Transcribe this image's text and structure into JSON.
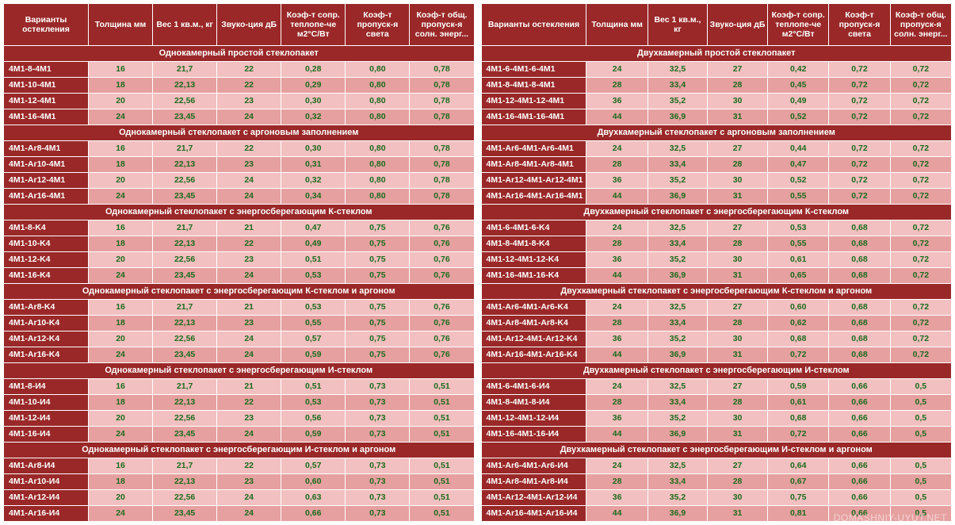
{
  "type": "table",
  "background_color": "#ffffff",
  "header_bg": "#9a2828",
  "header_fg": "#ffffff",
  "section_bg": "#9a2828",
  "section_fg": "#ffffff",
  "row_alt_colors": [
    "#f2c0c0",
    "#e6a0a0"
  ],
  "value_color": "#1c6b1c",
  "variant_cell_bg": "#9a2828",
  "font_family": "Arial",
  "header_fontsize": 10.5,
  "cell_fontsize": 10.5,
  "watermark": "DOMASHNIY-UYUT.NET",
  "columns": [
    "Варианты остекления",
    "Толщина мм",
    "Вес 1 кв.м., кг",
    "Звуко-ция дБ",
    "Коэф-т сопр. теплопе-че м2°С/Вт",
    "Коэф-т пропуск-я света",
    "Коэф-т общ. пропуск-я солн. энерг..."
  ],
  "left": {
    "sections": [
      {
        "title": "Однокамерный простой стеклопакет",
        "rows": [
          [
            "4M1-8-4M1",
            "16",
            "21,7",
            "22",
            "0,28",
            "0,80",
            "0,78"
          ],
          [
            "4M1-10-4M1",
            "18",
            "22,13",
            "22",
            "0,29",
            "0,80",
            "0,78"
          ],
          [
            "4M1-12-4M1",
            "20",
            "22,56",
            "23",
            "0,30",
            "0,80",
            "0,78"
          ],
          [
            "4M1-16-4M1",
            "24",
            "23,45",
            "24",
            "0,32",
            "0,80",
            "0,78"
          ]
        ]
      },
      {
        "title": "Однокамерный стеклопакет с аргоновым заполнением",
        "rows": [
          [
            "4M1-Ar8-4M1",
            "16",
            "21,7",
            "22",
            "0,30",
            "0,80",
            "0,78"
          ],
          [
            "4M1-Ar10-4M1",
            "18",
            "22,13",
            "23",
            "0,31",
            "0,80",
            "0,78"
          ],
          [
            "4M1-Ar12-4M1",
            "20",
            "22,56",
            "24",
            "0,32",
            "0,80",
            "0,78"
          ],
          [
            "4M1-Ar16-4M1",
            "24",
            "23,45",
            "24",
            "0,34",
            "0,80",
            "0,78"
          ]
        ]
      },
      {
        "title": "Однокамерный стеклопакет с энергосберегающим К-стеклом",
        "rows": [
          [
            "4M1-8-K4",
            "16",
            "21,7",
            "21",
            "0,47",
            "0,75",
            "0,76"
          ],
          [
            "4M1-10-K4",
            "18",
            "22,13",
            "22",
            "0,49",
            "0,75",
            "0,76"
          ],
          [
            "4M1-12-K4",
            "20",
            "22,56",
            "23",
            "0,51",
            "0,75",
            "0,76"
          ],
          [
            "4M1-16-K4",
            "24",
            "23,45",
            "24",
            "0,53",
            "0,75",
            "0,76"
          ]
        ]
      },
      {
        "title": "Однокамерный стеклопакет с энергосберегающим К-стеклом и аргоном",
        "rows": [
          [
            "4M1-Ar8-K4",
            "16",
            "21,7",
            "21",
            "0,53",
            "0,75",
            "0,76"
          ],
          [
            "4M1-Ar10-K4",
            "18",
            "22,13",
            "23",
            "0,55",
            "0,75",
            "0,76"
          ],
          [
            "4M1-Ar12-K4",
            "20",
            "22,56",
            "24",
            "0,57",
            "0,75",
            "0,76"
          ],
          [
            "4M1-Ar16-K4",
            "24",
            "23,45",
            "24",
            "0,59",
            "0,75",
            "0,76"
          ]
        ]
      },
      {
        "title": "Однокамерный стеклопакет с энергосберегающим И-стеклом",
        "rows": [
          [
            "4M1-8-И4",
            "16",
            "21,7",
            "21",
            "0,51",
            "0,73",
            "0,51"
          ],
          [
            "4M1-10-И4",
            "18",
            "22,13",
            "22",
            "0,53",
            "0,73",
            "0,51"
          ],
          [
            "4M1-12-И4",
            "20",
            "22,56",
            "23",
            "0,56",
            "0,73",
            "0,51"
          ],
          [
            "4M1-16-И4",
            "24",
            "23,45",
            "24",
            "0,59",
            "0,73",
            "0,51"
          ]
        ]
      },
      {
        "title": "Однокамерный стеклопакет с энергосберегающим И-стеклом и аргоном",
        "rows": [
          [
            "4M1-Ar8-И4",
            "16",
            "21,7",
            "22",
            "0,57",
            "0,73",
            "0,51"
          ],
          [
            "4M1-Ar10-И4",
            "18",
            "22,13",
            "23",
            "0,60",
            "0,73",
            "0,51"
          ],
          [
            "4M1-Ar12-И4",
            "20",
            "22,56",
            "24",
            "0,63",
            "0,73",
            "0,51"
          ],
          [
            "4M1-Ar16-И4",
            "24",
            "23,45",
            "24",
            "0,66",
            "0,73",
            "0,51"
          ]
        ]
      }
    ]
  },
  "right": {
    "sections": [
      {
        "title": "Двухкамерный простой стеклопакет",
        "rows": [
          [
            "4M1-6-4M1-6-4M1",
            "24",
            "32,5",
            "27",
            "0,42",
            "0,72",
            "0,72"
          ],
          [
            "4M1-8-4M1-8-4M1",
            "28",
            "33,4",
            "28",
            "0,45",
            "0,72",
            "0,72"
          ],
          [
            "4M1-12-4M1-12-4M1",
            "36",
            "35,2",
            "30",
            "0,49",
            "0,72",
            "0,72"
          ],
          [
            "4M1-16-4M1-16-4M1",
            "44",
            "36,9",
            "31",
            "0,52",
            "0,72",
            "0,72"
          ]
        ]
      },
      {
        "title": "Двухкамерный стеклопакет с аргоновым заполнением",
        "rows": [
          [
            "4M1-Ar6-4M1-Ar6-4M1",
            "24",
            "32,5",
            "27",
            "0,44",
            "0,72",
            "0,72"
          ],
          [
            "4M1-Ar8-4M1-Ar8-4M1",
            "28",
            "33,4",
            "28",
            "0,47",
            "0,72",
            "0,72"
          ],
          [
            "4M1-Ar12-4M1-Ar12-4M1",
            "36",
            "35,2",
            "30",
            "0,52",
            "0,72",
            "0,72"
          ],
          [
            "4M1-Ar16-4M1-Ar16-4M1",
            "44",
            "36,9",
            "31",
            "0,55",
            "0,72",
            "0,72"
          ]
        ]
      },
      {
        "title": "Двухкамерный стеклопакет с энергосберегающим К-стеклом",
        "rows": [
          [
            "4M1-6-4M1-6-K4",
            "24",
            "32,5",
            "27",
            "0,53",
            "0,68",
            "0,72"
          ],
          [
            "4M1-8-4M1-8-K4",
            "28",
            "33,4",
            "28",
            "0,55",
            "0,68",
            "0,72"
          ],
          [
            "4M1-12-4M1-12-K4",
            "36",
            "35,2",
            "30",
            "0,61",
            "0,68",
            "0,72"
          ],
          [
            "4M1-16-4M1-16-K4",
            "44",
            "36,9",
            "31",
            "0,65",
            "0,68",
            "0,72"
          ]
        ]
      },
      {
        "title": "Двухкамерный стеклопакет с энергосберегающим К-стеклом и аргоном",
        "rows": [
          [
            "4M1-Ar6-4M1-Ar6-K4",
            "24",
            "32,5",
            "27",
            "0,60",
            "0,68",
            "0,72"
          ],
          [
            "4M1-Ar8-4M1-Ar8-K4",
            "28",
            "33,4",
            "28",
            "0,62",
            "0,68",
            "0,72"
          ],
          [
            "4M1-Ar12-4M1-Ar12-K4",
            "36",
            "35,2",
            "30",
            "0,68",
            "0,68",
            "0,72"
          ],
          [
            "4M1-Ar16-4M1-Ar16-K4",
            "44",
            "36,9",
            "31",
            "0,72",
            "0,68",
            "0,72"
          ]
        ]
      },
      {
        "title": "Двухкамерный стеклопакет с энергосберегающим И-стеклом",
        "rows": [
          [
            "4M1-6-4M1-6-И4",
            "24",
            "32,5",
            "27",
            "0,59",
            "0,66",
            "0,5"
          ],
          [
            "4M1-8-4M1-8-И4",
            "28",
            "33,4",
            "28",
            "0,61",
            "0,66",
            "0,5"
          ],
          [
            "4M1-12-4M1-12-И4",
            "36",
            "35,2",
            "30",
            "0,68",
            "0,66",
            "0,5"
          ],
          [
            "4M1-16-4M1-16-И4",
            "44",
            "36,9",
            "31",
            "0,72",
            "0,66",
            "0,5"
          ]
        ]
      },
      {
        "title": "Двухкамерный стеклопакет с энергосберегающим И-стеклом и аргоном",
        "rows": [
          [
            "4M1-Ar6-4M1-Ar6-И4",
            "24",
            "32,5",
            "27",
            "0,64",
            "0,66",
            "0,5"
          ],
          [
            "4M1-Ar8-4M1-Ar8-И4",
            "28",
            "33,4",
            "28",
            "0,67",
            "0,66",
            "0,5"
          ],
          [
            "4M1-Ar12-4M1-Ar12-И4",
            "36",
            "35,2",
            "30",
            "0,75",
            "0,66",
            "0,5"
          ],
          [
            "4M1-Ar16-4M1-Ar16-И4",
            "44",
            "36,9",
            "31",
            "0,81",
            "0,66",
            "0,5"
          ]
        ]
      }
    ]
  }
}
